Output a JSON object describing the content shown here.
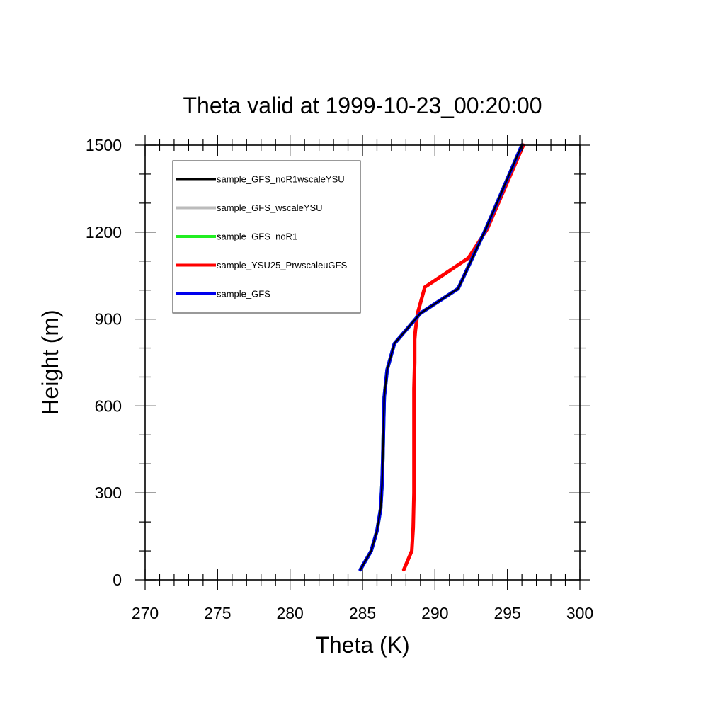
{
  "chart_data": {
    "type": "line",
    "title": "Theta valid at 1999-10-23_00:20:00",
    "xlabel": "Theta (K)",
    "ylabel": "Height (m)",
    "xlim": [
      270,
      300
    ],
    "ylim": [
      0,
      1500
    ],
    "x_ticks": [
      270,
      275,
      280,
      285,
      290,
      295,
      300
    ],
    "y_ticks": [
      0,
      300,
      600,
      900,
      1200,
      1500
    ],
    "x_tick_labels": [
      "270",
      "275",
      "280",
      "285",
      "290",
      "295",
      "300"
    ],
    "y_tick_labels": [
      "0",
      "300",
      "600",
      "900",
      "1200",
      "1500"
    ],
    "grid": false,
    "legend_position": "top-left",
    "series": [
      {
        "name": "sample_GFS_noR1wscaleYSU",
        "color": "#000000",
        "x": [
          284.85,
          285.6,
          286.0,
          286.25,
          286.35,
          286.4,
          286.45,
          286.5,
          286.7,
          287.2,
          289.0,
          291.6,
          293.5,
          296.0
        ],
        "y": [
          35,
          100,
          170,
          245,
          330,
          420,
          530,
          630,
          725,
          815,
          920,
          1005,
          1210,
          1500
        ]
      },
      {
        "name": "sample_GFS_wscaleYSU",
        "color": "#bbbbbb",
        "x": [
          284.85,
          285.6,
          286.0,
          286.25,
          286.35,
          286.4,
          286.45,
          286.5,
          286.7,
          287.2,
          289.0,
          291.6,
          293.5,
          296.0
        ],
        "y": [
          35,
          100,
          170,
          245,
          330,
          420,
          530,
          630,
          725,
          815,
          920,
          1005,
          1210,
          1500
        ]
      },
      {
        "name": "sample_GFS_noR1",
        "color": "#22ee22",
        "x": [
          284.85,
          285.6,
          286.0,
          286.25,
          286.35,
          286.4,
          286.45,
          286.5,
          286.7,
          287.2,
          289.0,
          291.6,
          293.5,
          296.0
        ],
        "y": [
          35,
          100,
          170,
          245,
          330,
          420,
          530,
          630,
          725,
          815,
          920,
          1005,
          1210,
          1500
        ]
      },
      {
        "name": "sample_YSU25_PrwscaleuGFS",
        "color": "#ff0000",
        "x": [
          287.85,
          288.4,
          288.5,
          288.55,
          288.55,
          288.55,
          288.55,
          288.6,
          288.6,
          288.65,
          288.8,
          289.3,
          292.3,
          293.6,
          296.1
        ],
        "y": [
          35,
          100,
          180,
          300,
          420,
          540,
          660,
          750,
          830,
          860,
          920,
          1010,
          1110,
          1210,
          1500
        ]
      },
      {
        "name": "sample_GFS",
        "color": "#0000ee",
        "x": [
          284.85,
          285.6,
          286.0,
          286.25,
          286.35,
          286.4,
          286.45,
          286.5,
          286.7,
          287.2,
          289.0,
          291.6,
          293.5,
          296.0
        ],
        "y": [
          35,
          100,
          170,
          245,
          330,
          420,
          530,
          630,
          725,
          815,
          920,
          1005,
          1210,
          1500
        ]
      }
    ]
  }
}
